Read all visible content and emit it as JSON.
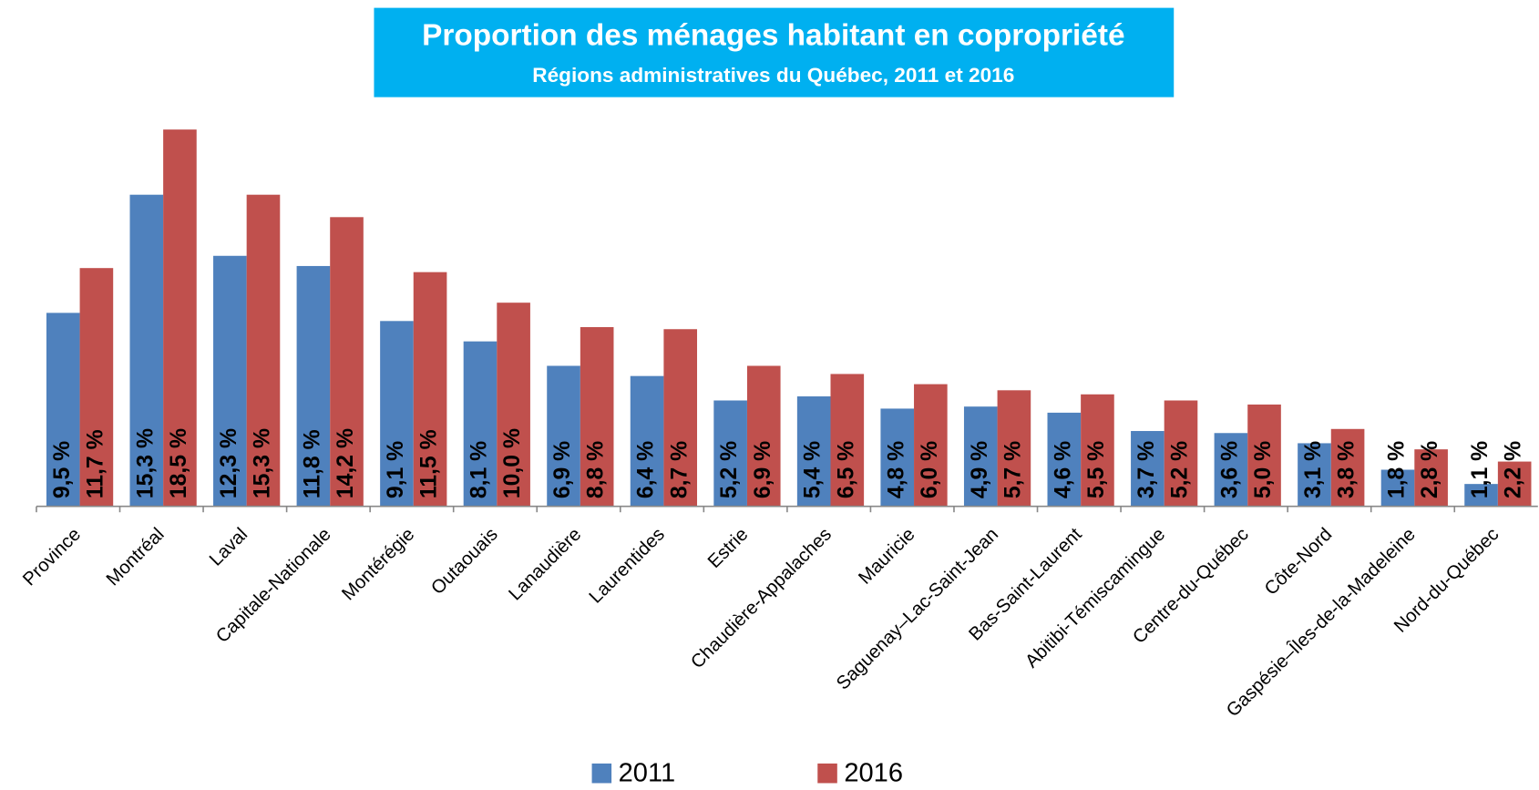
{
  "chart_data": {
    "type": "bar",
    "title": "Proportion des ménages habitant en copropriété",
    "subtitle": "Régions administratives du Québec, 2011 et 2016",
    "categories": [
      "Province",
      "Montréal",
      "Laval",
      "Capitale-Nationale",
      "Montérégie",
      "Outaouais",
      "Lanaudière",
      "Laurentides",
      "Estrie",
      "Chaudière-Appalaches",
      "Mauricie",
      "Saguenay–Lac-Saint-Jean",
      "Bas-Saint-Laurent",
      "Abitibi-Témiscamingue",
      "Centre-du-Québec",
      "Côte-Nord",
      "Gaspésie–Îles-de-la-Madeleine",
      "Nord-du-Québec"
    ],
    "series": [
      {
        "name": "2011",
        "color": "#4f81bd",
        "values": [
          9.5,
          15.3,
          12.3,
          11.8,
          9.1,
          8.1,
          6.9,
          6.4,
          5.2,
          5.4,
          4.8,
          4.9,
          4.6,
          3.7,
          3.6,
          3.1,
          1.8,
          1.1
        ],
        "value_labels": [
          "9,5 %",
          "15,3 %",
          "12,3 %",
          "11,8 %",
          "9,1 %",
          "8,1 %",
          "6,9 %",
          "6,4 %",
          "5,2 %",
          "5,4 %",
          "4,8 %",
          "4,9 %",
          "4,6 %",
          "3,7 %",
          "3,6 %",
          "3,1 %",
          "1,8 %",
          "1,1 %"
        ]
      },
      {
        "name": "2016",
        "color": "#c0504d",
        "values": [
          11.7,
          18.5,
          15.3,
          14.2,
          11.5,
          10.0,
          8.8,
          8.7,
          6.9,
          6.5,
          6.0,
          5.7,
          5.5,
          5.2,
          5.0,
          3.8,
          2.8,
          2.2
        ],
        "value_labels": [
          "11,7 %",
          "18,5 %",
          "15,3 %",
          "14,2 %",
          "11,5 %",
          "10,0 %",
          "8,8 %",
          "8,7 %",
          "6,9 %",
          "6,5 %",
          "6,0 %",
          "5,7 %",
          "5,5 %",
          "5,2 %",
          "5,0 %",
          "3,8 %",
          "2,8 %",
          "2,2 %"
        ]
      }
    ]
  }
}
